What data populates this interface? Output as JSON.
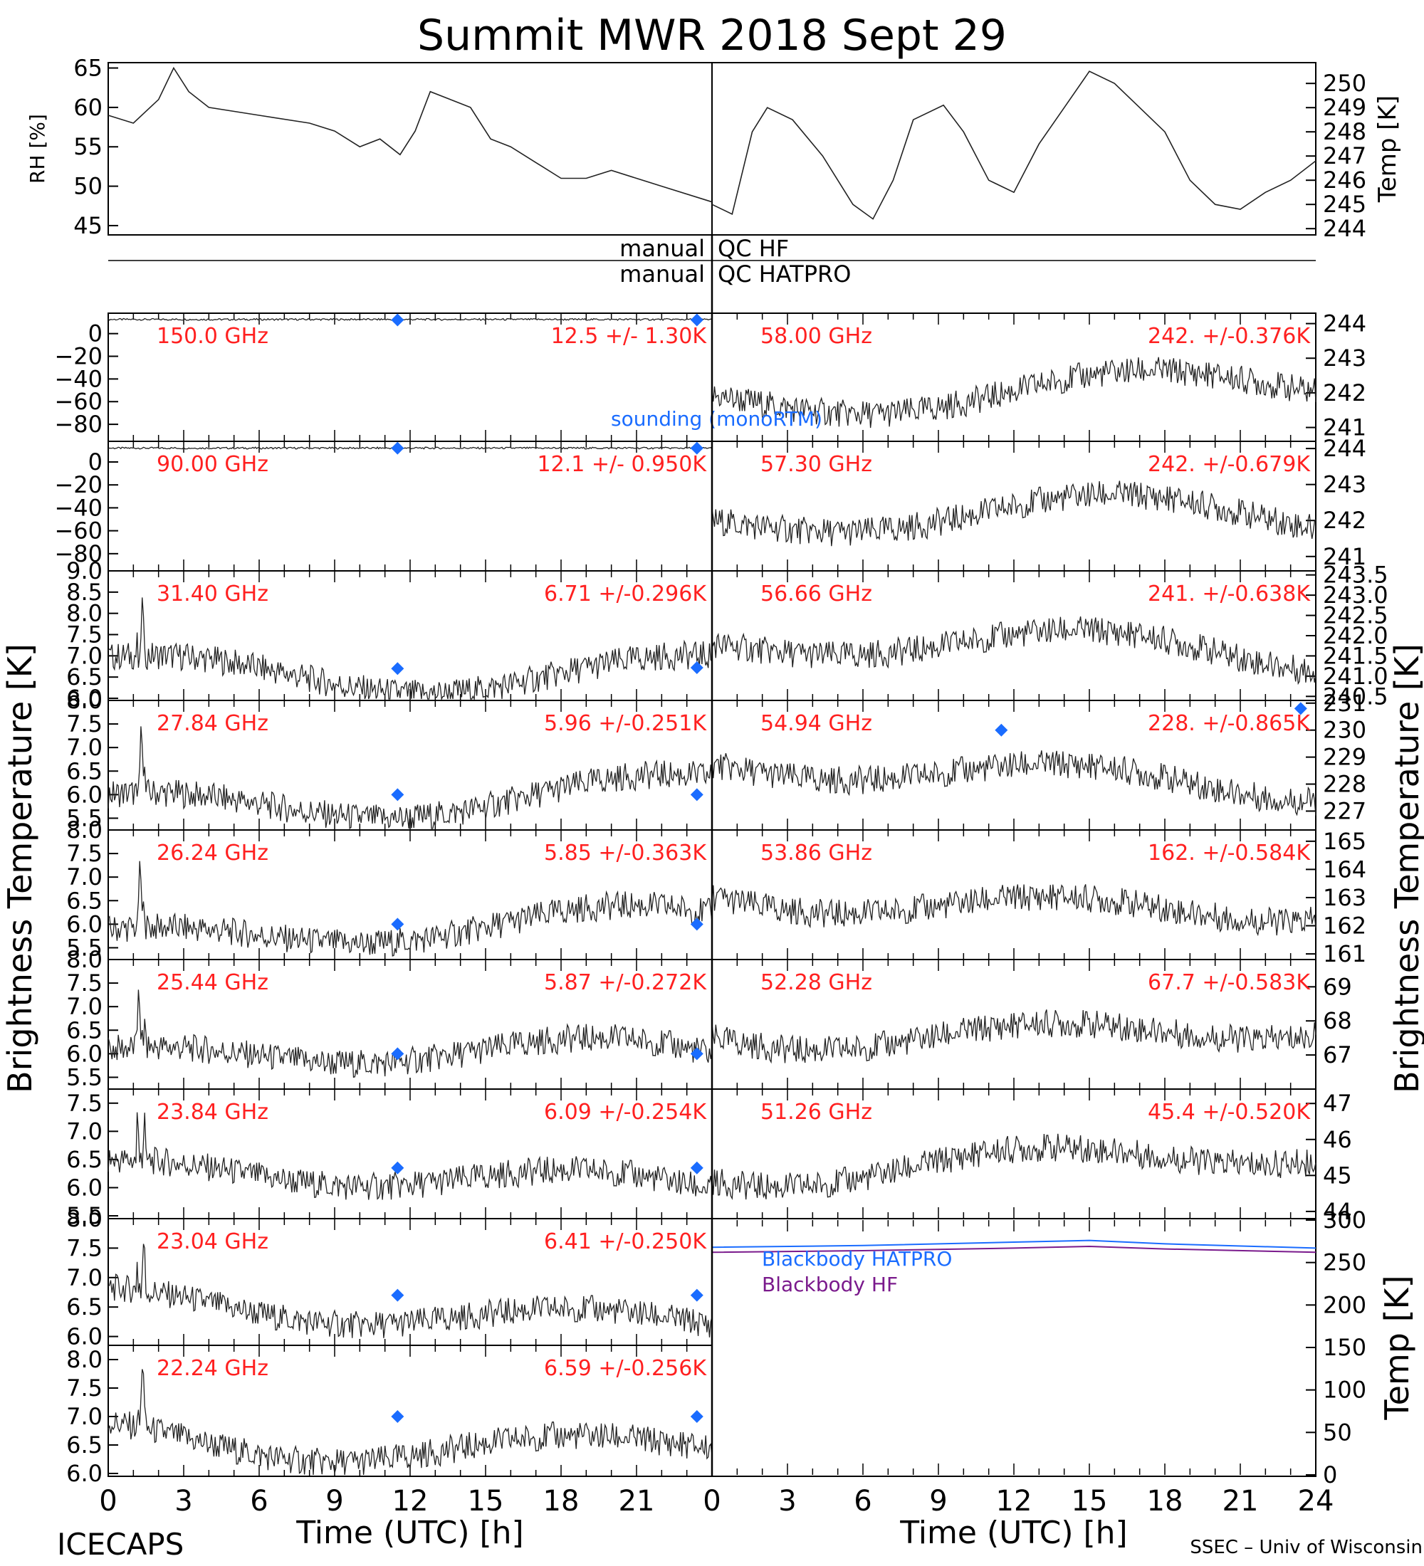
{
  "page": {
    "title": "Summit MWR 2018 Sept 29",
    "footer_left": "ICECAPS",
    "footer_right": "SSEC – Univ of Wisconsin",
    "xlabel": "Time (UTC) [h]",
    "left_ylabel": "Brightness Temperature [K]",
    "right_ylabel": "Brightness Temperature [K]",
    "qc_hf": {
      "left": "manual",
      "right": "QC HF"
    },
    "qc_hatpro": {
      "left": "manual",
      "right": "QC HATPRO"
    },
    "sounding_label": "sounding (monoRTM)"
  },
  "colors": {
    "frequency_label": "#ff2020",
    "sounding_marker": "#1a6cff",
    "trace": "#222222",
    "blackbody_hatpro": "#1a6cff",
    "blackbody_hf": "#7a1a8c"
  },
  "chart_data": [
    {
      "id": "rh",
      "type": "line",
      "ylabel": "RH [%]",
      "xlim": [
        0,
        12
      ],
      "ylim": [
        44,
        65.5
      ],
      "yticks": [
        "45",
        "50",
        "55",
        "60",
        "65"
      ],
      "x": [
        0,
        0.5,
        1,
        1.3,
        1.6,
        2,
        3,
        4,
        4.5,
        5,
        5.4,
        5.8,
        6.1,
        6.4,
        6.8,
        7.2,
        7.6,
        8,
        8.5,
        9,
        9.5,
        10,
        11,
        12
      ],
      "y": [
        59,
        58,
        61,
        65,
        62,
        60,
        59,
        58,
        57,
        55,
        56,
        54,
        57,
        62,
        61,
        60,
        56,
        55,
        53,
        51,
        51,
        52,
        50,
        48
      ]
    },
    {
      "id": "temp",
      "type": "line",
      "ylabel": "Temp [K]",
      "xlim": [
        12,
        24
      ],
      "ylim": [
        243.8,
        250.8
      ],
      "yticks": [
        "244",
        "245",
        "246",
        "247",
        "248",
        "249",
        "250"
      ],
      "x": [
        12,
        12.4,
        12.8,
        13.1,
        13.6,
        14.2,
        14.8,
        15.2,
        15.6,
        16,
        16.6,
        17,
        17.5,
        18,
        18.5,
        19,
        19.5,
        20,
        20.5,
        21,
        21.5,
        22,
        22.5,
        23,
        23.5,
        24
      ],
      "y": [
        245,
        244.6,
        248,
        249,
        248.5,
        247,
        245,
        244.4,
        246,
        248.5,
        249.1,
        248,
        246,
        245.5,
        247.5,
        249,
        250.5,
        250,
        249,
        248,
        246,
        245,
        244.8,
        245.5,
        246,
        246.8
      ]
    },
    {
      "id": "blackbody",
      "type": "line",
      "ylabel": "Temp [K]",
      "xlim": [
        0,
        24
      ],
      "ylim": [
        0,
        300
      ],
      "yticks": [
        "0",
        "50",
        "100",
        "150",
        "200",
        "250",
        "300"
      ],
      "series": [
        {
          "name": "Blackbody HATPRO",
          "x": [
            0,
            6,
            12,
            15,
            18,
            24
          ],
          "y": [
            268,
            270,
            274,
            276,
            272,
            267
          ]
        },
        {
          "name": "Blackbody HF",
          "x": [
            0,
            6,
            12,
            15,
            18,
            24
          ],
          "y": [
            262,
            264,
            267,
            269,
            266,
            262
          ]
        }
      ]
    },
    {
      "id": "tb_150",
      "type": "line",
      "freq": "150.0 GHz",
      "stat": "12.5 +/-  1.30K",
      "ylim": [
        -95,
        18
      ],
      "yticks": [
        "0",
        "−20",
        "−40",
        "−60",
        "−80"
      ],
      "base": 12.5,
      "markers": [
        {
          "x": 11.5,
          "y": 12
        },
        {
          "x": 23.4,
          "y": 12
        }
      ]
    },
    {
      "id": "tb_90",
      "type": "line",
      "freq": "90.00 GHz",
      "stat": "12.1 +/- 0.950K",
      "ylim": [
        -95,
        18
      ],
      "yticks": [
        "0",
        "−20",
        "−40",
        "−60",
        "−80"
      ],
      "base": 12.1,
      "markers": [
        {
          "x": 11.5,
          "y": 12
        },
        {
          "x": 23.4,
          "y": 12
        }
      ]
    },
    {
      "id": "tb_3140",
      "type": "line",
      "freq": "31.40 GHz",
      "stat": "6.71 +/-0.296K",
      "ylim": [
        5.95,
        9.0
      ],
      "yticks": [
        "6.0",
        "6.5",
        "7.0",
        "7.5",
        "8.0",
        "8.5",
        "9.0"
      ],
      "base": 6.72,
      "markers": [
        {
          "x": 11.5,
          "y": 6.7
        },
        {
          "x": 23.4,
          "y": 6.72
        }
      ]
    },
    {
      "id": "tb_2784",
      "type": "line",
      "freq": "27.84 GHz",
      "stat": "5.96 +/-0.251K",
      "ylim": [
        5.25,
        8.0
      ],
      "yticks": [
        "5.5",
        "6.0",
        "6.5",
        "7.0",
        "7.5",
        "8.0"
      ],
      "base": 5.96,
      "markers": [
        {
          "x": 11.5,
          "y": 6.0
        },
        {
          "x": 23.4,
          "y": 6.0
        }
      ]
    },
    {
      "id": "tb_2624",
      "type": "line",
      "freq": "26.24 GHz",
      "stat": "5.85 +/-0.363K",
      "ylim": [
        5.25,
        8.0
      ],
      "yticks": [
        "5.5",
        "6.0",
        "6.5",
        "7.0",
        "7.5",
        "8.0"
      ],
      "base": 5.85,
      "markers": [
        {
          "x": 11.5,
          "y": 6.0
        },
        {
          "x": 23.4,
          "y": 6.0
        }
      ]
    },
    {
      "id": "tb_2544",
      "type": "line",
      "freq": "25.44 GHz",
      "stat": "5.87 +/-0.272K",
      "ylim": [
        5.25,
        8.0
      ],
      "yticks": [
        "5.5",
        "6.0",
        "6.5",
        "7.0",
        "7.5",
        "8.0"
      ],
      "base": 5.87,
      "markers": [
        {
          "x": 11.5,
          "y": 6.0
        },
        {
          "x": 23.4,
          "y": 6.0
        }
      ]
    },
    {
      "id": "tb_2384",
      "type": "line",
      "freq": "23.84 GHz",
      "stat": "6.09 +/-0.254K",
      "ylim": [
        5.45,
        7.75
      ],
      "yticks": [
        "5.5",
        "6.0",
        "6.5",
        "7.0",
        "7.5"
      ],
      "base": 6.09,
      "markers": [
        {
          "x": 11.5,
          "y": 6.35
        },
        {
          "x": 23.4,
          "y": 6.35
        }
      ]
    },
    {
      "id": "tb_2304",
      "type": "line",
      "freq": "23.04 GHz",
      "stat": "6.41 +/-0.250K",
      "ylim": [
        5.85,
        8.0
      ],
      "yticks": [
        "6.0",
        "6.5",
        "7.0",
        "7.5",
        "8.0"
      ],
      "base": 6.41,
      "markers": [
        {
          "x": 11.5,
          "y": 6.7
        },
        {
          "x": 23.4,
          "y": 6.7
        }
      ]
    },
    {
      "id": "tb_2224",
      "type": "line",
      "freq": "22.24 GHz",
      "stat": "6.59 +/-0.256K",
      "ylim": [
        5.95,
        8.25
      ],
      "yticks": [
        "6.0",
        "6.5",
        "7.0",
        "7.5",
        "8.0"
      ],
      "base": 6.59,
      "markers": [
        {
          "x": 11.5,
          "y": 7.0
        },
        {
          "x": 23.4,
          "y": 7.0
        }
      ]
    },
    {
      "id": "tb_5800",
      "type": "line",
      "freq": "58.00 GHz",
      "stat": "242. +/-0.376K",
      "ylim": [
        240.6,
        244.3
      ],
      "yticks": [
        "241",
        "242",
        "243",
        "244"
      ],
      "base": 242.0,
      "markers": []
    },
    {
      "id": "tb_5730",
      "type": "line",
      "freq": "57.30 GHz",
      "stat": "242. +/-0.679K",
      "ylim": [
        240.6,
        244.2
      ],
      "yticks": [
        "241",
        "242",
        "243",
        "244"
      ],
      "base": 242.0,
      "markers": []
    },
    {
      "id": "tb_5666",
      "type": "line",
      "freq": "56.66 GHz",
      "stat": "241. +/-0.638K",
      "ylim": [
        240.4,
        243.6
      ],
      "yticks": [
        "240.5",
        "241.0",
        "241.5",
        "242.0",
        "242.5",
        "243.0",
        "243.5"
      ],
      "base": 241.6,
      "markers": []
    },
    {
      "id": "tb_5494",
      "type": "line",
      "freq": "54.94 GHz",
      "stat": "228. +/-0.865K",
      "ylim": [
        226.3,
        231.1
      ],
      "yticks": [
        "227",
        "228",
        "229",
        "230",
        "231"
      ],
      "base": 228.3,
      "markers": [
        {
          "x": 11.5,
          "y": 230.0
        },
        {
          "x": 23.4,
          "y": 230.8
        }
      ]
    },
    {
      "id": "tb_5386",
      "type": "line",
      "freq": "53.86 GHz",
      "stat": "162. +/-0.584K",
      "ylim": [
        160.8,
        165.4
      ],
      "yticks": [
        "161",
        "162",
        "163",
        "164",
        "165"
      ],
      "base": 162.9,
      "markers": []
    },
    {
      "id": "tb_5228",
      "type": "line",
      "freq": "52.28 GHz",
      "stat": "67.7 +/-0.583K",
      "ylim": [
        66.0,
        69.8
      ],
      "yticks": [
        "67",
        "68",
        "69"
      ],
      "base": 67.8,
      "markers": []
    },
    {
      "id": "tb_5126",
      "type": "line",
      "freq": "51.26 GHz",
      "stat": "45.4 +/-0.520K",
      "ylim": [
        43.8,
        47.4
      ],
      "yticks": [
        "44",
        "45",
        "46",
        "47"
      ],
      "base": 45.4,
      "markers": []
    }
  ],
  "xaxis": {
    "left_ticks": [
      "0",
      "3",
      "6",
      "9",
      "12",
      "15",
      "18",
      "21"
    ],
    "right_ticks": [
      "0",
      "3",
      "6",
      "9",
      "12",
      "15",
      "18",
      "21",
      "24"
    ]
  }
}
